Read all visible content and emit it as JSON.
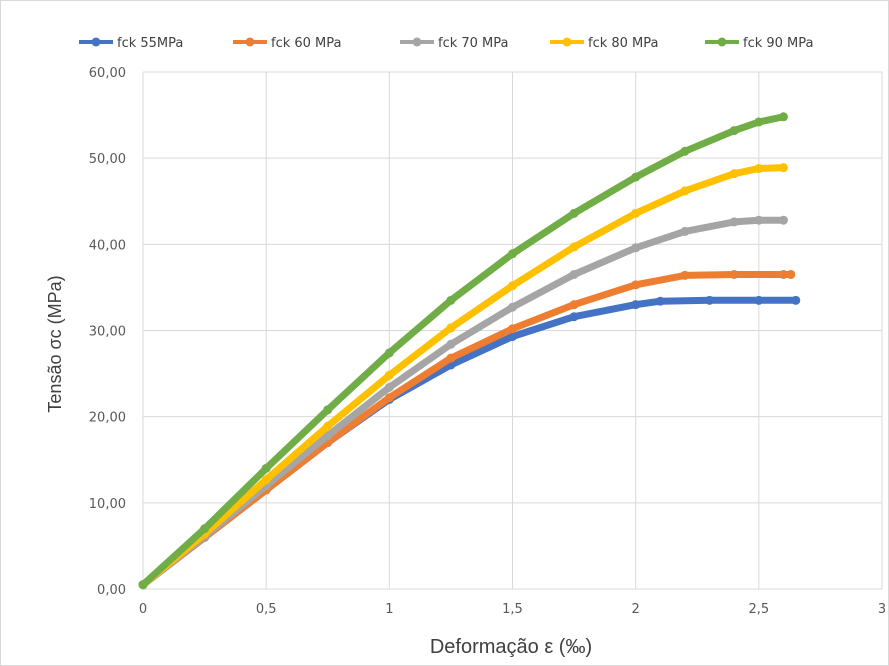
{
  "chart_data": {
    "type": "line",
    "xlabel": "Deformação ε (‰)",
    "ylabel": "Tensão σc (MPa)",
    "xlim": [
      0,
      3
    ],
    "ylim": [
      0,
      60
    ],
    "x_ticks": [
      "0",
      "0,5",
      "1",
      "1,5",
      "2",
      "2,5",
      "3"
    ],
    "y_ticks": [
      "0,00",
      "10,00",
      "20,00",
      "30,00",
      "40,00",
      "50,00",
      "60,00"
    ],
    "grid": true,
    "legend_position": "top",
    "series": [
      {
        "name": "fck 55MPa",
        "color": "#4472C4",
        "x": [
          0,
          0.25,
          0.5,
          0.75,
          1.0,
          1.25,
          1.5,
          1.75,
          2.0,
          2.1,
          2.3,
          2.5,
          2.65
        ],
        "y": [
          0.5,
          6.0,
          11.5,
          17.0,
          22.0,
          26.0,
          29.3,
          31.6,
          33.0,
          33.4,
          33.5,
          33.5,
          33.5
        ]
      },
      {
        "name": "fck 60 MPa",
        "color": "#ED7D31",
        "x": [
          0,
          0.25,
          0.5,
          0.75,
          1.0,
          1.25,
          1.5,
          1.75,
          2.0,
          2.2,
          2.4,
          2.6,
          2.63
        ],
        "y": [
          0.5,
          6.0,
          11.5,
          17.0,
          22.2,
          26.8,
          30.2,
          33.0,
          35.3,
          36.4,
          36.5,
          36.5,
          36.5
        ]
      },
      {
        "name": "fck 70 MPa",
        "color": "#A5A5A5",
        "x": [
          0,
          0.25,
          0.5,
          0.75,
          1.0,
          1.25,
          1.5,
          1.75,
          2.0,
          2.2,
          2.4,
          2.5,
          2.6
        ],
        "y": [
          0.5,
          6.1,
          12.0,
          17.8,
          23.4,
          28.4,
          32.7,
          36.5,
          39.6,
          41.5,
          42.6,
          42.8,
          42.8
        ]
      },
      {
        "name": "fck 80 MPa",
        "color": "#FFC000",
        "x": [
          0,
          0.25,
          0.5,
          0.75,
          1.0,
          1.25,
          1.5,
          1.75,
          2.0,
          2.2,
          2.4,
          2.5,
          2.6
        ],
        "y": [
          0.5,
          6.4,
          12.7,
          18.9,
          24.8,
          30.3,
          35.2,
          39.7,
          43.6,
          46.2,
          48.2,
          48.8,
          48.9
        ]
      },
      {
        "name": "fck 90 MPa",
        "color": "#70AD47",
        "x": [
          0,
          0.25,
          0.5,
          0.75,
          1.0,
          1.25,
          1.5,
          1.75,
          2.0,
          2.2,
          2.4,
          2.5,
          2.6
        ],
        "y": [
          0.5,
          7.0,
          14.0,
          20.8,
          27.4,
          33.5,
          38.9,
          43.6,
          47.8,
          50.8,
          53.2,
          54.2,
          54.8
        ]
      }
    ]
  }
}
